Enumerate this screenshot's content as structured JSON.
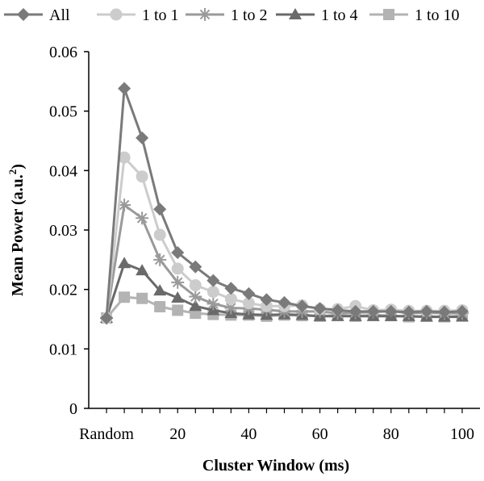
{
  "chart_data": {
    "type": "line",
    "xlabel": "Cluster Window (ms)",
    "ylabel": "Mean Power (a.u.",
    "ylabel_sup": "2",
    "ylabel_close": ")",
    "ylim": [
      0,
      0.06
    ],
    "yticks": [
      0,
      0.01,
      0.02,
      0.03,
      0.04,
      0.05,
      0.06
    ],
    "ytick_labels": [
      "0",
      "0.01",
      "0.02",
      "0.03",
      "0.04",
      "0.05",
      "0.06"
    ],
    "xlim": [
      -5,
      105
    ],
    "xticks": [
      0,
      20,
      40,
      60,
      80,
      100
    ],
    "xtick_labels": [
      "Random",
      "20",
      "40",
      "60",
      "80",
      "100"
    ],
    "x": [
      0,
      5,
      10,
      15,
      20,
      25,
      30,
      35,
      40,
      45,
      50,
      55,
      60,
      65,
      70,
      75,
      80,
      85,
      90,
      95,
      100
    ],
    "legend_position": "top",
    "series": [
      {
        "name": "All",
        "marker": "diamond",
        "color": "#7a7a7a",
        "values": [
          0.0152,
          0.0538,
          0.0455,
          0.0335,
          0.0262,
          0.0238,
          0.0215,
          0.0202,
          0.0193,
          0.0183,
          0.0178,
          0.0172,
          0.0168,
          0.0165,
          0.0163,
          0.0163,
          0.0163,
          0.0162,
          0.0163,
          0.0162,
          0.0163
        ]
      },
      {
        "name": "1 to 1",
        "marker": "circle",
        "color": "#cccccc",
        "values": [
          0.0152,
          0.0422,
          0.039,
          0.0292,
          0.0235,
          0.0207,
          0.0196,
          0.0184,
          0.0177,
          0.0172,
          0.0172,
          0.0173,
          0.0167,
          0.0167,
          0.0172,
          0.0165,
          0.0166,
          0.0164,
          0.0164,
          0.0164,
          0.0165
        ]
      },
      {
        "name": "1 to 2",
        "marker": "star",
        "color": "#9a9a9a",
        "values": [
          0.0152,
          0.0342,
          0.032,
          0.025,
          0.0212,
          0.0188,
          0.0176,
          0.0169,
          0.0168,
          0.0166,
          0.0163,
          0.0163,
          0.0163,
          0.016,
          0.0161,
          0.0162,
          0.0164,
          0.016,
          0.0161,
          0.016,
          0.016
        ]
      },
      {
        "name": "1 to 4",
        "marker": "triangle",
        "color": "#6a6a6a",
        "values": [
          0.0152,
          0.0244,
          0.0232,
          0.0198,
          0.0186,
          0.0172,
          0.0165,
          0.016,
          0.0158,
          0.0157,
          0.0158,
          0.0157,
          0.0155,
          0.0155,
          0.0155,
          0.0155,
          0.0155,
          0.0155,
          0.0154,
          0.0154,
          0.0154
        ]
      },
      {
        "name": "1 to 10",
        "marker": "square",
        "color": "#b3b3b3",
        "values": [
          0.0152,
          0.0187,
          0.0185,
          0.0171,
          0.0165,
          0.016,
          0.0158,
          0.0157,
          0.0157,
          0.0155,
          0.0157,
          0.0156,
          0.0155,
          0.0157,
          0.0155,
          0.0157,
          0.0156,
          0.0154,
          0.0155,
          0.0154,
          0.0156
        ]
      }
    ]
  }
}
